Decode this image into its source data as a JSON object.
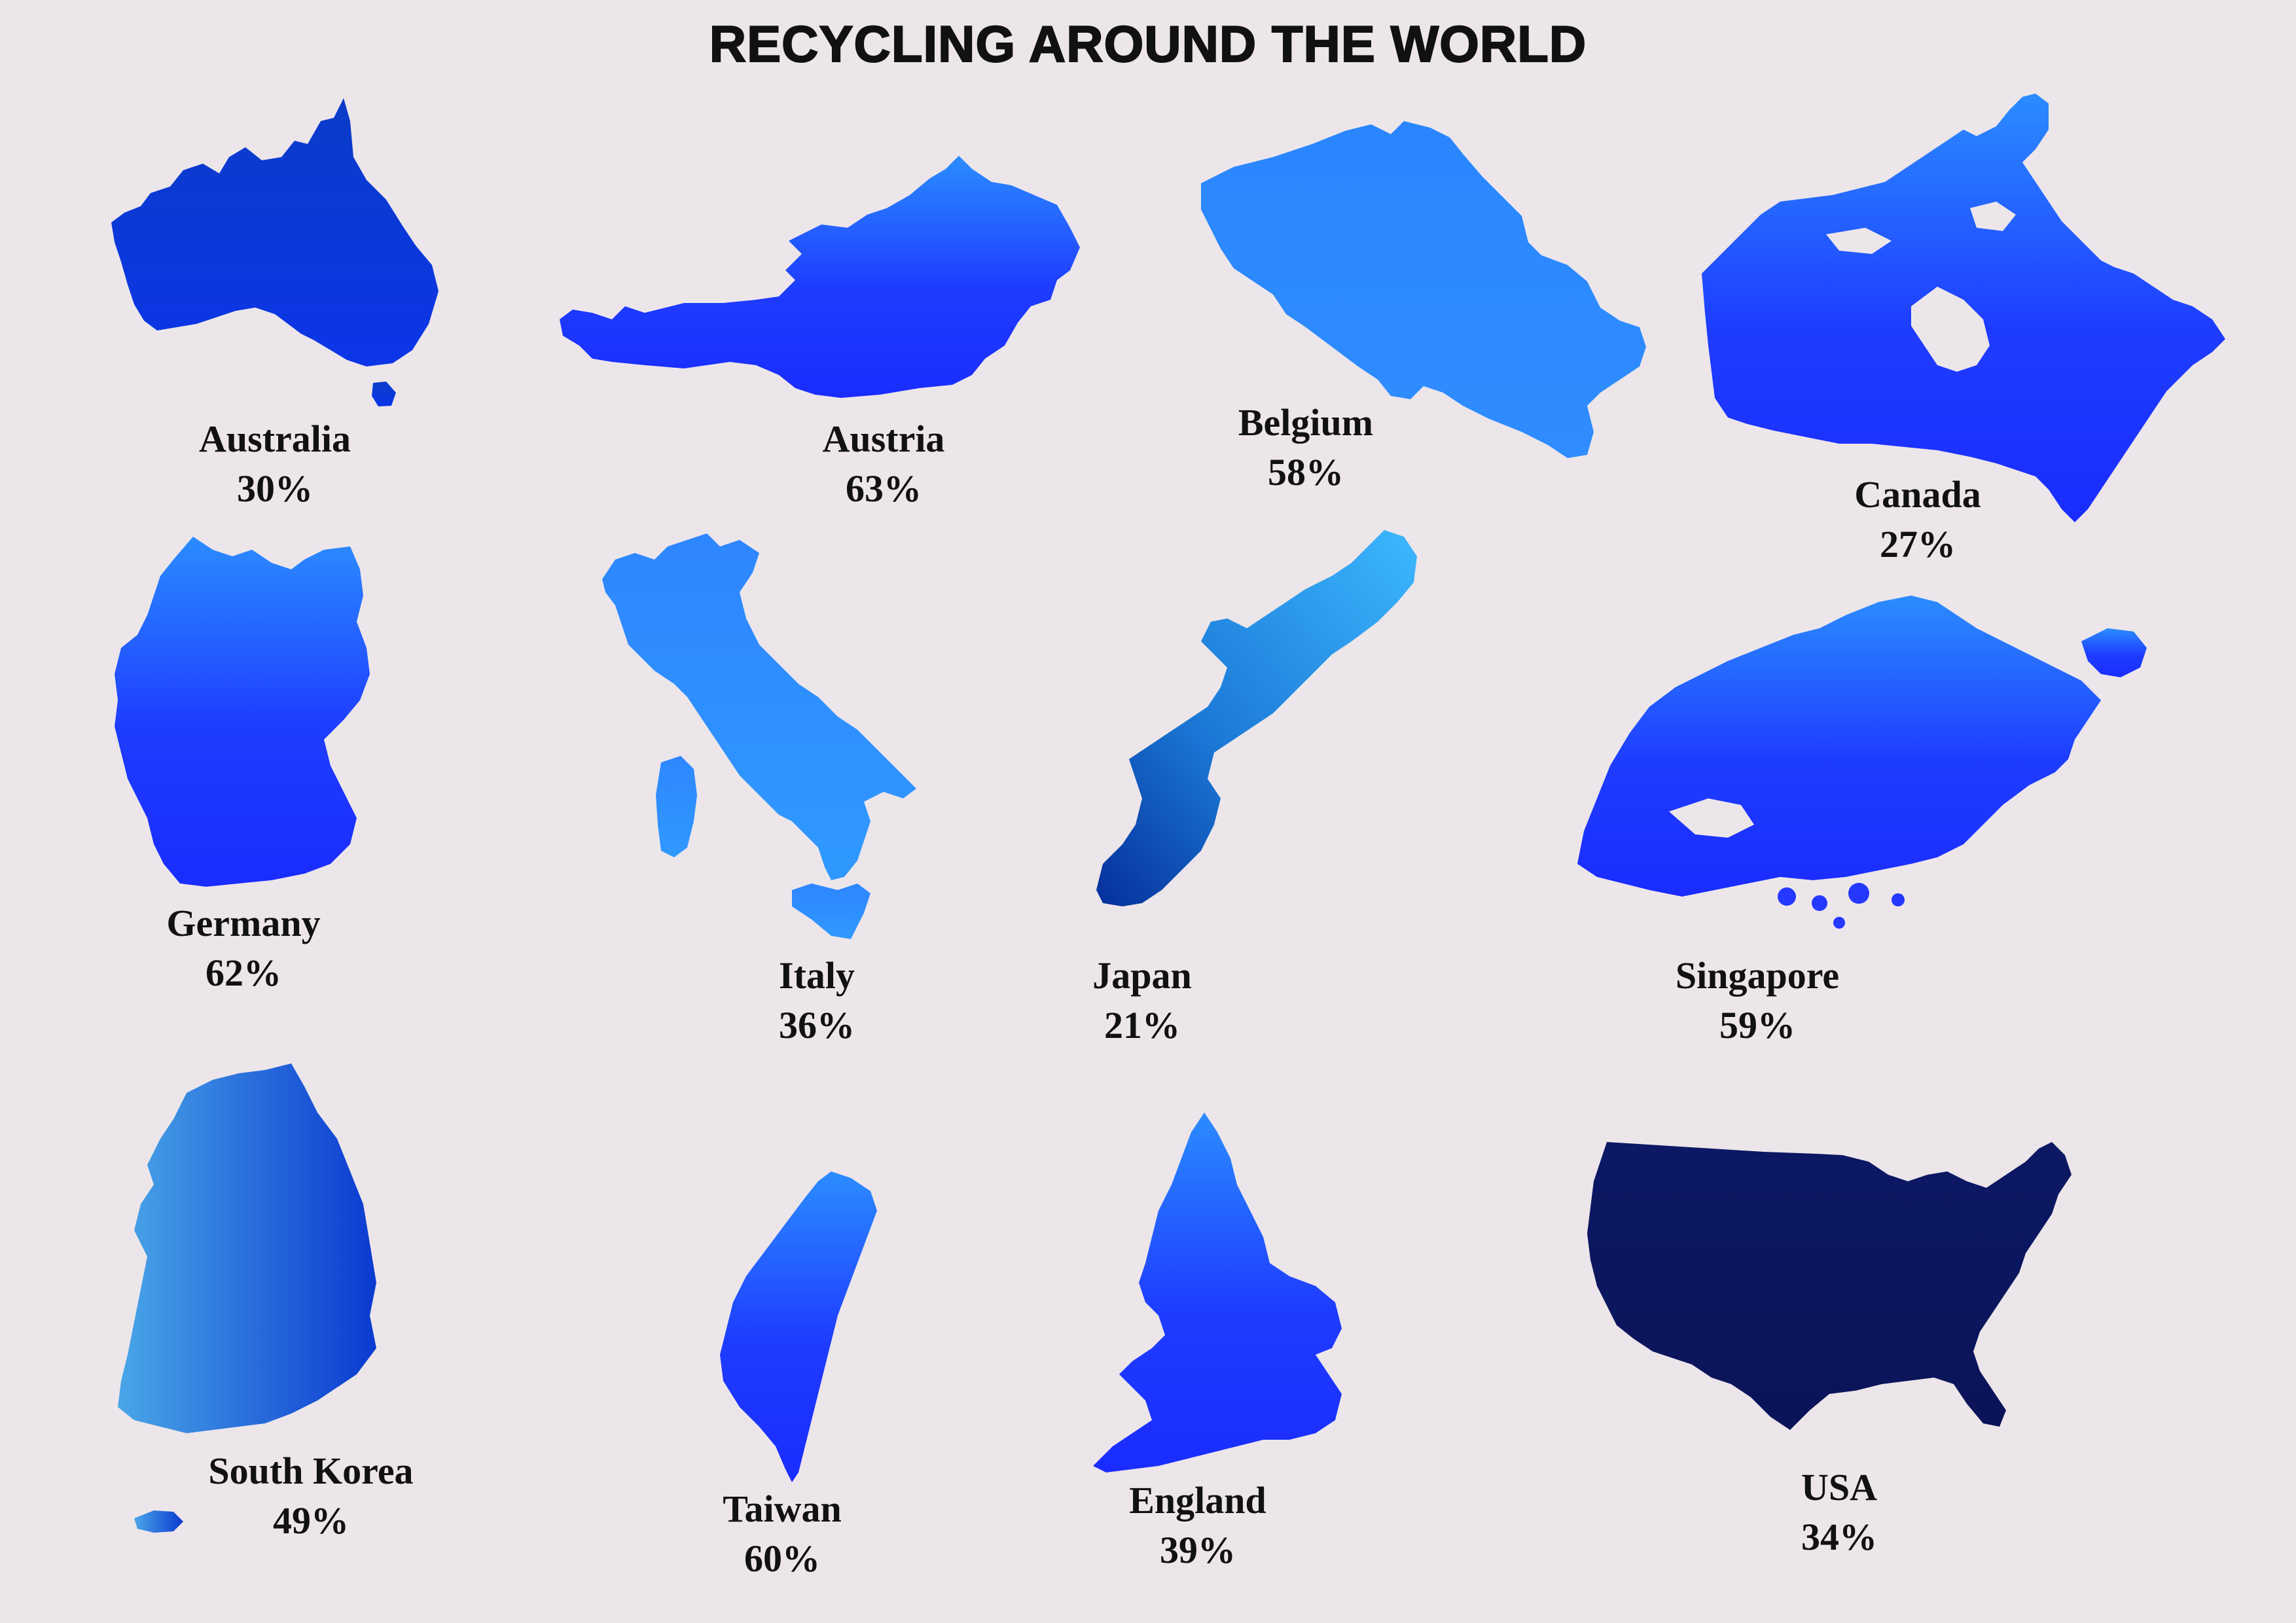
{
  "title": "RECYCLING AROUND THE WORLD",
  "countries": [
    {
      "key": "australia",
      "name": "Australia",
      "rate": "30%",
      "rate_value": 30,
      "fill": "#0a3fd6"
    },
    {
      "key": "austria",
      "name": "Austria",
      "rate": "63%",
      "rate_value": 63,
      "fill": "#1f3cff"
    },
    {
      "key": "belgium",
      "name": "Belgium",
      "rate": "58%",
      "rate_value": 58,
      "fill": "#2a86ff"
    },
    {
      "key": "canada",
      "name": "Canada",
      "rate": "27%",
      "rate_value": 27,
      "fill": "#1a2cff"
    },
    {
      "key": "germany",
      "name": "Germany",
      "rate": "62%",
      "rate_value": 62,
      "fill": "#1f38ff"
    },
    {
      "key": "italy",
      "name": "Italy",
      "rate": "36%",
      "rate_value": 36,
      "fill": "#2a8cff"
    },
    {
      "key": "japan",
      "name": "Japan",
      "rate": "21%",
      "rate_value": 21,
      "fill": "#1c6fd8"
    },
    {
      "key": "singapore",
      "name": "Singapore",
      "rate": "59%",
      "rate_value": 59,
      "fill": "#1f3cff"
    },
    {
      "key": "south_korea",
      "name": "South Korea",
      "rate": "49%",
      "rate_value": 49,
      "fill": "#1b55d8"
    },
    {
      "key": "taiwan",
      "name": "Taiwan",
      "rate": "60%",
      "rate_value": 60,
      "fill": "#1e3aff"
    },
    {
      "key": "england",
      "name": "England",
      "rate": "39%",
      "rate_value": 39,
      "fill": "#1f48ff"
    },
    {
      "key": "usa",
      "name": "USA",
      "rate": "34%",
      "rate_value": 34,
      "fill": "#0c1660"
    }
  ]
}
